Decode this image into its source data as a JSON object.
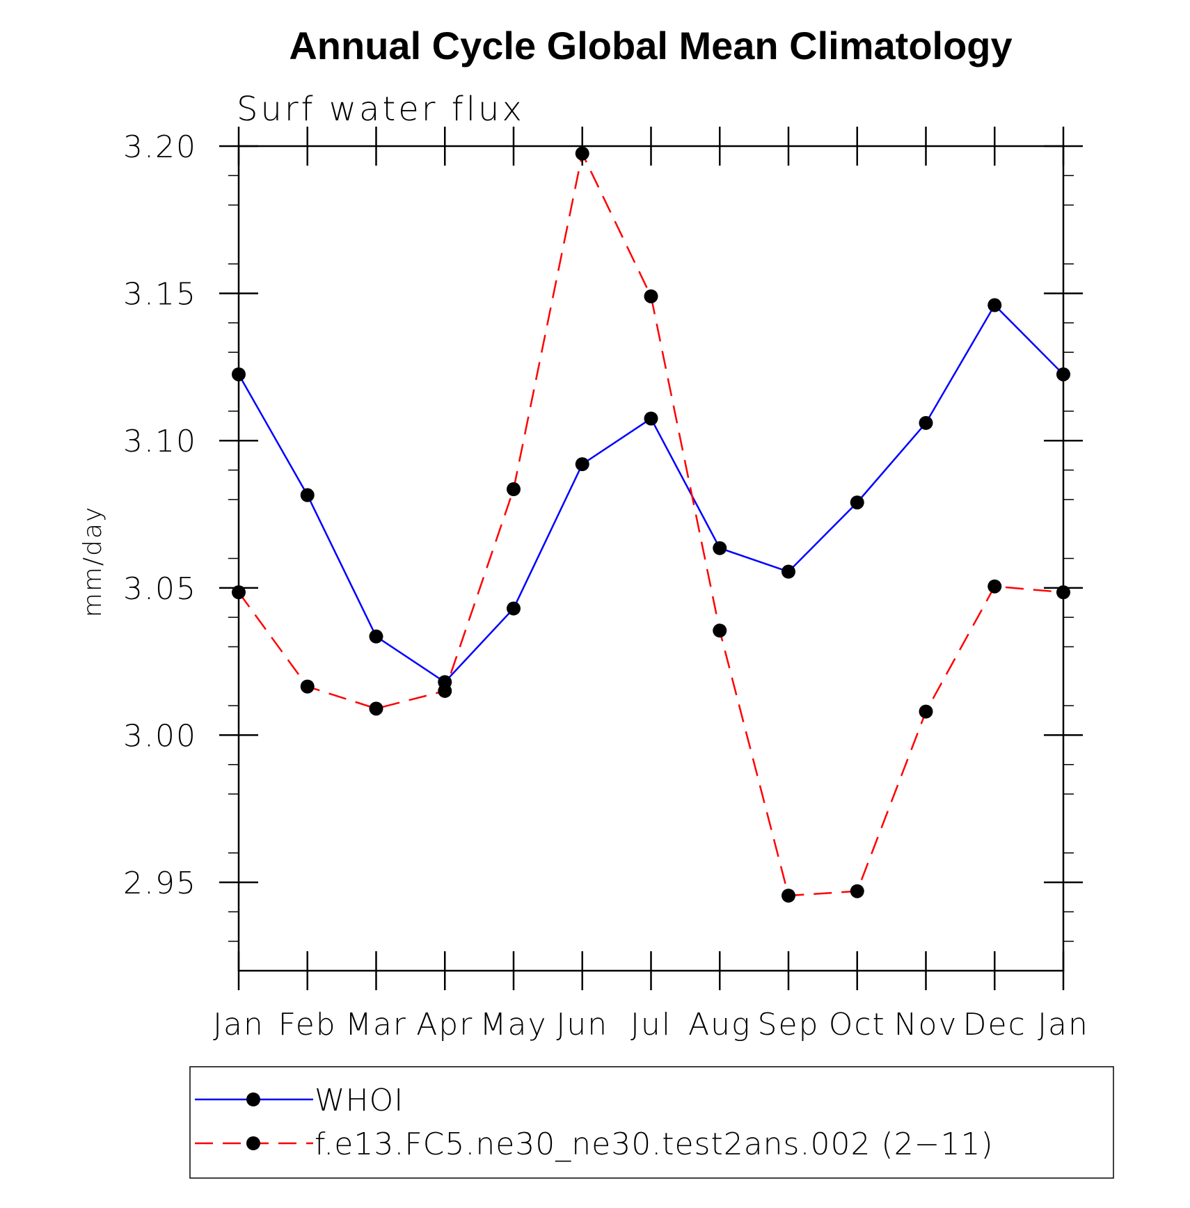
{
  "chart_data": {
    "type": "line",
    "title": "Annual Cycle Global Mean Climatology",
    "subtitle": "Surf  water  flux",
    "xlabel": "",
    "ylabel": "mm/day",
    "ylim": [
      2.92,
      3.2
    ],
    "yticks": [
      "3.20",
      "3.15",
      "3.10",
      "3.05",
      "3.00",
      "2.95"
    ],
    "ytick_values": [
      3.2,
      3.15,
      3.1,
      3.05,
      3.0,
      2.95
    ],
    "categories": [
      "Jan",
      "Feb",
      "Mar",
      "Apr",
      "May",
      "Jun",
      "Jul",
      "Aug",
      "Sep",
      "Oct",
      "Nov",
      "Dec",
      "Jan"
    ],
    "grid": false,
    "legend_position": "bottom",
    "series": [
      {
        "name": "WHOI",
        "color": "#0000ff",
        "style": "solid",
        "marker": "circle",
        "values": [
          3.1225,
          3.0815,
          3.0335,
          3.018,
          3.043,
          3.092,
          3.1075,
          3.0635,
          3.0555,
          3.079,
          3.106,
          3.146,
          3.1225
        ]
      },
      {
        "name": "f.e13.FC5.ne30_ne30.test2ans.002 (2−11)",
        "color": "#ff0000",
        "style": "dashed",
        "marker": "circle",
        "values": [
          3.0485,
          3.0165,
          3.009,
          3.015,
          3.0835,
          3.1975,
          3.149,
          3.0355,
          2.9455,
          2.947,
          3.008,
          3.0505,
          3.0485
        ]
      }
    ]
  }
}
